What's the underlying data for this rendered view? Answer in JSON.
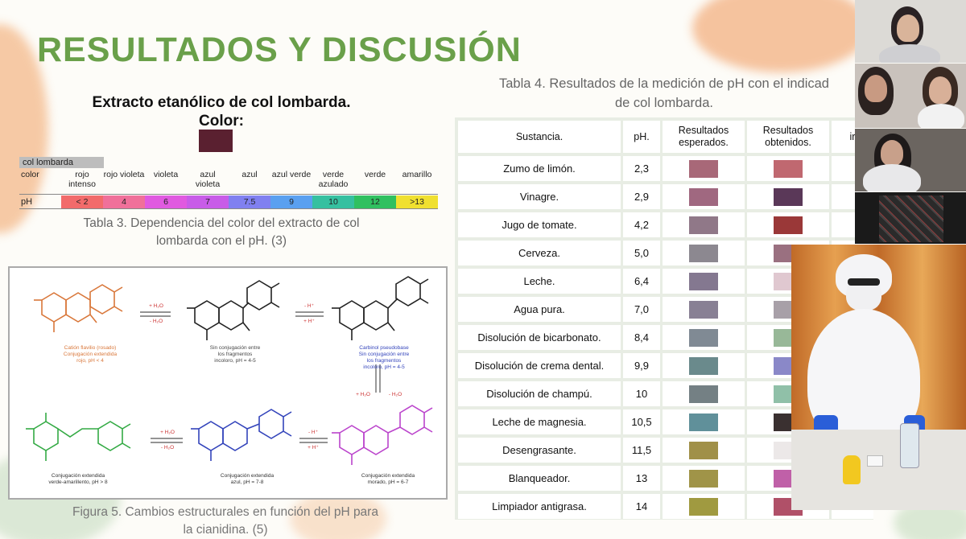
{
  "slide": {
    "title": "RESULTADOS Y DISCUSIÓN",
    "extract_title_line1": "Extracto etanólico de col lombarda.",
    "extract_title_line2": "Color:",
    "extract_color": "#5a2030"
  },
  "ph_scale": {
    "header": "col lombarda",
    "color_label": "color",
    "ph_label": "pH",
    "colors": [
      "rojo intenso",
      "rojo violeta",
      "violeta",
      "azul violeta",
      "azul",
      "azul verde",
      "verde azulado",
      "verde",
      "amarillo"
    ],
    "values": [
      "< 2",
      "4",
      "6",
      "7",
      "7.5",
      "9",
      "10",
      "12",
      ">13"
    ],
    "fills": [
      "#f26b6b",
      "#f0709a",
      "#e05ae0",
      "#c85ce8",
      "#8080f0",
      "#5aa0f0",
      "#36c0a0",
      "#30c060",
      "#f0e030"
    ],
    "caption_line1": "Tabla 3. Dependencia del color del extracto de col",
    "caption_line2": "lombarda con el pH. (3)"
  },
  "figure": {
    "caption_line1": "Figura 5. Cambios estructurales en función del pH para",
    "caption_line2": "la cianidina. (5)",
    "labels": {
      "s1a": "Catión flavilio (rosado)",
      "s1b": "Conjugación extendida",
      "s1c": "rojo, pH < 4",
      "s2a": "Sin conjugación entre",
      "s2b": "los fragmentos",
      "s2c": "incoloro, pH = 4-5",
      "s3a": "Carbinol pseudobase",
      "s3b": "Sin conjugación entre",
      "s3c": "los fragmentos",
      "s3d": "incoloro, pH = 4-5",
      "s4a": "Conjugación extendida",
      "s4b": "verde-amarillento, pH > 8",
      "s5a": "Conjugación extendida",
      "s5b": "azul, pH = 7-8",
      "s6a": "Conjugación extendida",
      "s6b": "morado, pH = 6-7",
      "arrow1a": "+ H₂O",
      "arrow1b": "- H₂O",
      "arrow2a": "- H⁺",
      "arrow2b": "+ H⁺",
      "arrow3a": "+ H₂O",
      "arrow3b": "- H₂O",
      "arrow4a": "+ H₂O",
      "arrow4b": "- H₂O",
      "arrow5a": "- H⁺",
      "arrow5b": "+ H⁺"
    }
  },
  "table4": {
    "caption_line1": "Tabla 4. Resultados de la medición de pH con el indicad",
    "caption_line2": "de col lombarda.",
    "headers": [
      "Sustancia.",
      "pH.",
      "Resultados esperados.",
      "Resultados obtenidos.",
      "ir"
    ],
    "rows": [
      {
        "name": "Zumo de limón.",
        "ph": "2,3",
        "exp": "#a86878",
        "obt": "#c06870"
      },
      {
        "name": "Vinagre.",
        "ph": "2,9",
        "exp": "#a06880",
        "obt": "#5a3858"
      },
      {
        "name": "Jugo de tomate.",
        "ph": "4,2",
        "exp": "#907888",
        "obt": "#9a3838"
      },
      {
        "name": "Cerveza.",
        "ph": "5,0",
        "exp": "#8c8890",
        "obt": "#9a7080"
      },
      {
        "name": "Leche.",
        "ph": "6,4",
        "exp": "#847890",
        "obt": "#e0c8d0"
      },
      {
        "name": "Agua pura.",
        "ph": "7,0",
        "exp": "#888094",
        "obt": "#a8a0a8"
      },
      {
        "name": "Disolución de bicarbonato.",
        "ph": "8,4",
        "exp": "#808a94",
        "obt": "#98b898"
      },
      {
        "name": "Disolución de crema dental.",
        "ph": "9,9",
        "exp": "#6a8a8c",
        "obt": "#8a88c8"
      },
      {
        "name": "Disolución de champú.",
        "ph": "10",
        "exp": "#748084",
        "obt": "#90c0a8"
      },
      {
        "name": "Leche de magnesia.",
        "ph": "10,5",
        "exp": "#60909a",
        "obt": "#3a3030"
      },
      {
        "name": "Desengrasante.",
        "ph": "11,5",
        "exp": "#a09048",
        "obt": "#ece8e8"
      },
      {
        "name": "Blanqueador.",
        "ph": "13",
        "exp": "#a09448",
        "obt": "#c060a8"
      },
      {
        "name": "Limpiador antigrasa.",
        "ph": "14",
        "exp": "#a09a40",
        "obt": "#b05068"
      }
    ]
  }
}
